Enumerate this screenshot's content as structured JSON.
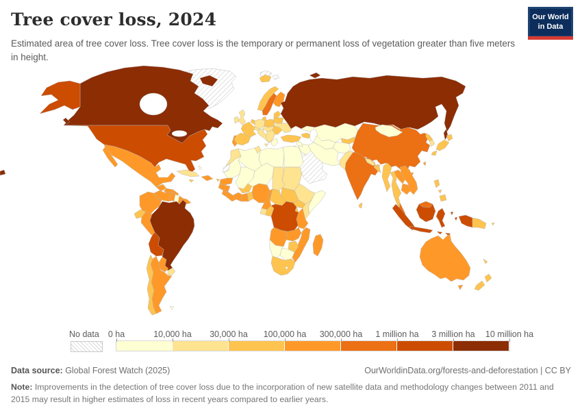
{
  "header": {
    "title": "Tree cover loss, 2024",
    "subtitle": "Estimated area of tree cover loss. Tree cover loss is the temporary or permanent loss of vegetation greater than five meters in height."
  },
  "logo": {
    "line1": "Our World",
    "line2": "in Data",
    "navy": "#0d2e5c",
    "red": "#d73a33"
  },
  "legend": {
    "no_data_label": "No data",
    "tick_labels": [
      "0 ha",
      "10,000 ha",
      "30,000 ha",
      "100,000 ha",
      "300,000 ha",
      "1 million ha",
      "3 million ha",
      "10 million ha"
    ]
  },
  "footer": {
    "source_label": "Data source:",
    "source_value": " Global Forest Watch (2025)",
    "link": "OurWorldinData.org/forests-and-deforestation | CC BY",
    "note_label": "Note:",
    "note_text": " Improvements in the detection of tree cover loss due to the incorporation of new satellite data and methodology changes between 2011 and 2015 may result in higher estimates of loss in recent years compared to earlier years."
  },
  "chart_data": {
    "type": "choropleth-map",
    "title": "Tree cover loss, 2024",
    "year": 2024,
    "unit": "ha",
    "legend_position": "bottom",
    "no_data_fill": "hatched",
    "bin_colors": [
      "#ffffd4",
      "#fee391",
      "#fec44f",
      "#fe9929",
      "#ec7014",
      "#cc4c02",
      "#8c2d04"
    ],
    "bin_edges_labels": [
      "0 ha",
      "10,000 ha",
      "30,000 ha",
      "100,000 ha",
      "300,000 ha",
      "1 million ha",
      "3 million ha",
      "10 million ha"
    ],
    "country_bins": {
      "greenland": "no-data",
      "svalbard": "no-data",
      "western-sahara": "no-data",
      "saudi-arabia": "no-data",
      "russia": 6,
      "sakhalin": 6,
      "novaya-zemlya": 6,
      "canada": 6,
      "baffin-island": 6,
      "vancouver-island": 6,
      "brazil": 6,
      "map-edge-fragment": 6,
      "united-states": 5,
      "alaska": 5,
      "dr-congo": 5,
      "bolivia": 5,
      "sumatra": 5,
      "java": 5,
      "borneo-kalimantan": 5,
      "sulawesi": 5,
      "moluccas-a": 5,
      "moluccas-b": 5,
      "lesser-sunda-a": 5,
      "lesser-sunda-b": 5,
      "west-papua": 5,
      "china": 4,
      "india": 4,
      "sweden": 4,
      "malaysia-peninsula": 4,
      "borneo-malaysia": 4,
      "mexico": 3,
      "baja-california": 3,
      "guatemala": 3,
      "honduras-nicaragua": 3,
      "costa-rica-panama": 3,
      "hispaniola": 3,
      "colombia": 3,
      "venezuela": 3,
      "guyana": 3,
      "french-guiana": 3,
      "peru": 3,
      "paraguay": 3,
      "argentina": 3,
      "portugal": 3,
      "finland": 3,
      "laos": 3,
      "vietnam": 3,
      "cambodia": 3,
      "taiwan": 3,
      "hainan": 3,
      "australia": 3,
      "tasmania": 3,
      "madagascar": 3,
      "tanzania": 3,
      "angola": 3,
      "zambia": 3,
      "mozambique": 3,
      "nigeria": 3,
      "ghana": 3,
      "cote-divoire": 3,
      "liberia": 3,
      "sierra-leone": 3,
      "guinea": 3,
      "senegal": 3,
      "cameroon": 3,
      "ecuador": 2,
      "chile": 2,
      "jamaica": 2,
      "puerto-rico": 2,
      "lesser-antilles": 2,
      "norway": 2,
      "iceland": 2,
      "denmark": 2,
      "benelux": 2,
      "france": 2,
      "spain": 2,
      "poland": 2,
      "baltics": 2,
      "belarus": 2,
      "romania": 2,
      "turkey": 2,
      "caucasus": 2,
      "togo-benin": 2,
      "burkina-faso": 2,
      "central-african-republic": 2,
      "south-sudan": 2,
      "congo": 2,
      "uganda": 2,
      "rwanda-burundi": 2,
      "malawi": 2,
      "zimbabwe": 2,
      "south-africa": 2,
      "myanmar": 2,
      "thailand": 2,
      "bangladesh": 2,
      "bhutan": 2,
      "sri-lanka": 2,
      "north-korea": 2,
      "japan-hokkaido": 2,
      "japan-honshu": 2,
      "japan-kyushu": 2,
      "philippines-luzon": 2,
      "philippines-visayas": 2,
      "philippines-mindanao": 2,
      "papua-new-guinea": 2,
      "new-zealand-north": 2,
      "new-zealand-south": 2,
      "new-caledonia": 2,
      "solomon-islands": 2,
      "kyrgyzstan-tajikistan": 2,
      "cuba": 1,
      "uruguay": 1,
      "united-kingdom": 1,
      "ireland": 1,
      "germany": 1,
      "italy": 1,
      "sicily": 1,
      "czech-hungary": 1,
      "balkans": 1,
      "ukraine": 1,
      "morocco": 1,
      "tunisia": 1,
      "chad": 1,
      "sudan": 1,
      "ethiopia": 1,
      "kenya": 1,
      "gabon": 1,
      "pakistan": 1,
      "nepal": 1,
      "south-korea": 1,
      "alpine-states": 1,
      "bahamas": 0,
      "suriname": 0,
      "falklands": 0,
      "greece": 0,
      "kazakhstan": 0,
      "uzbekistan-turkmenistan": 0,
      "afghanistan": 0,
      "iran": 0,
      "iraq": 0,
      "syria": 0,
      "levant": 0,
      "mongolia": 0,
      "algeria": 0,
      "libya": 0,
      "egypt": 0,
      "mauritania": 0,
      "mali": 0,
      "niger": 0,
      "somalia": 0,
      "botswana": 0,
      "namibia": 0,
      "lesotho": 0
    }
  }
}
